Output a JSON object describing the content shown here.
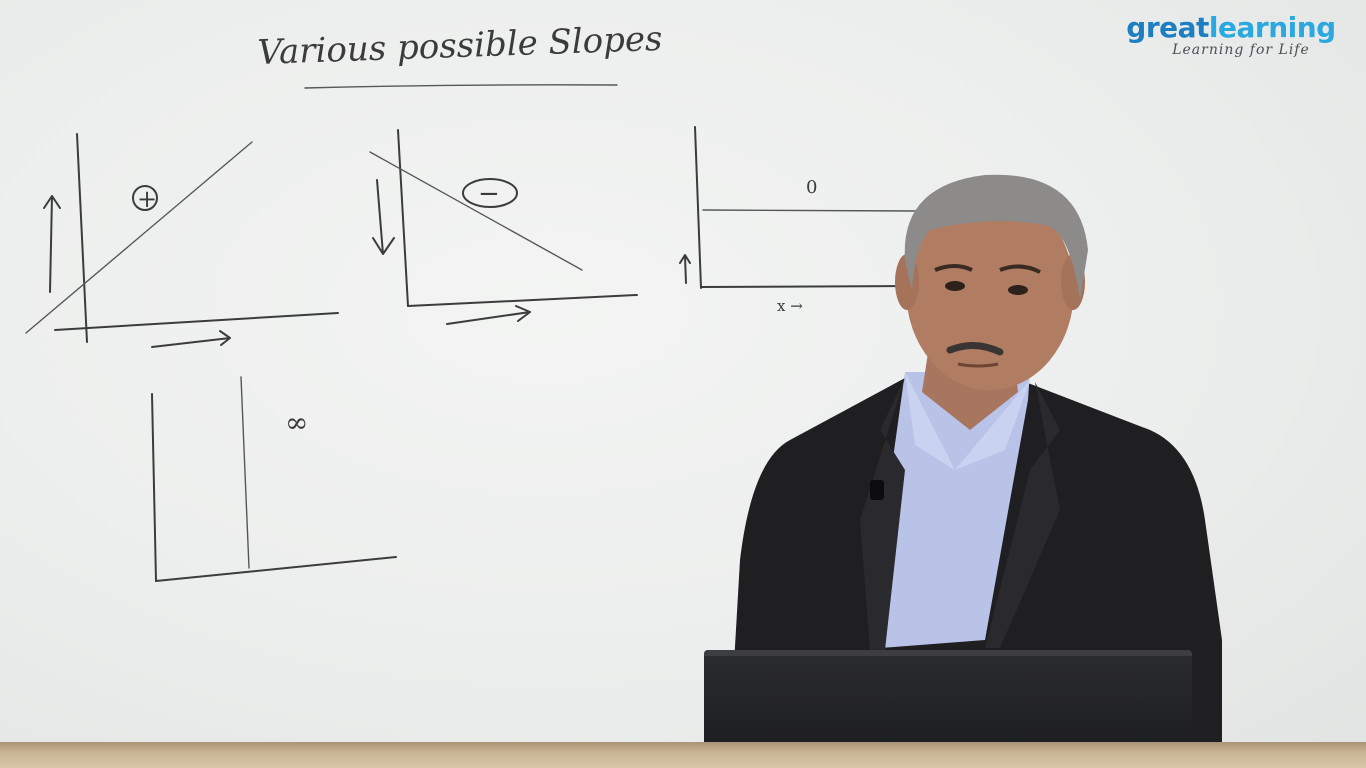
{
  "board": {
    "title": "Various possible Slopes",
    "graphs": [
      {
        "id": "positive",
        "label": "+"
      },
      {
        "id": "negative",
        "label": "−"
      },
      {
        "id": "zero",
        "label": "0",
        "axis_label": "x →"
      },
      {
        "id": "infinite",
        "label": "∞"
      }
    ]
  },
  "logo": {
    "word_part1": "great",
    "word_part2": "learning",
    "tagline": "Learning for Life"
  },
  "colors": {
    "logo_great": "#1d7fc1",
    "logo_learning": "#2aa8df",
    "marker_ink": "#3c3c3e",
    "suit": "#1f1f22",
    "shirt": "#b9c3e8"
  }
}
